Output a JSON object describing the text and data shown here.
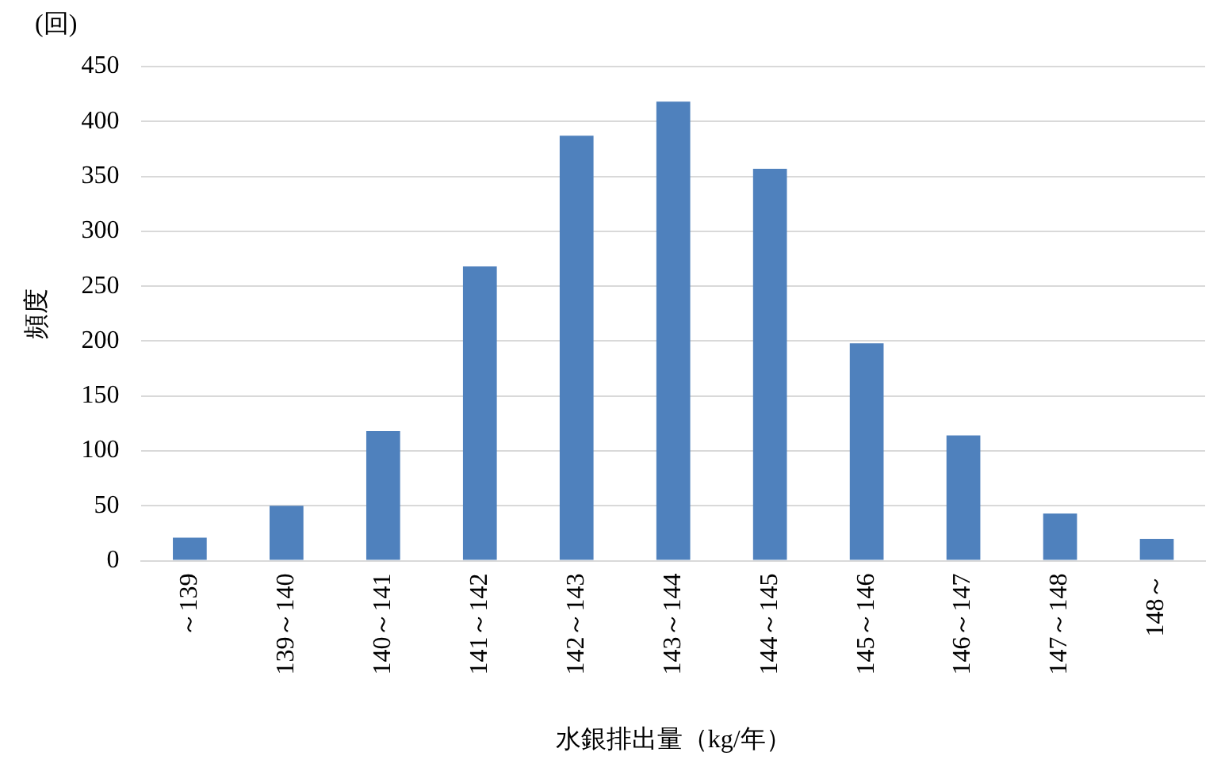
{
  "chart_data": {
    "type": "bar",
    "xlabel": "水銀排出量（kg/年）",
    "ylabel": "頻度",
    "annotations": [
      "(回)"
    ],
    "categories": [
      "～139",
      "139～140",
      "140～141",
      "141～142",
      "142～143",
      "143～144",
      "144～145",
      "145～146",
      "146～147",
      "147～148",
      "148～"
    ],
    "values": [
      21,
      50,
      118,
      268,
      387,
      418,
      357,
      198,
      114,
      43,
      20
    ],
    "color": "#4f81bd",
    "ylim": [
      0,
      450
    ],
    "yticks": [
      0,
      50,
      100,
      150,
      200,
      250,
      300,
      350,
      400,
      450
    ],
    "grid": "y"
  }
}
